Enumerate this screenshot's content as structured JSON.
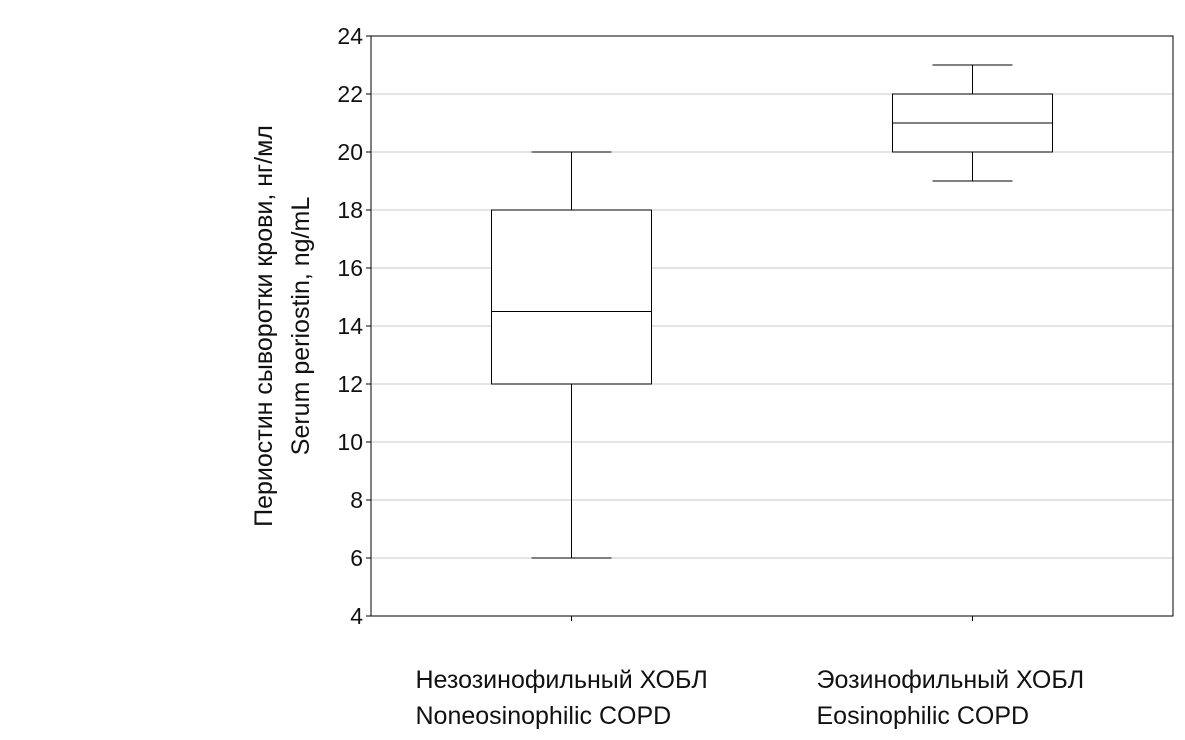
{
  "chart_data": {
    "type": "box",
    "ylabel": [
      "Периостин сыворотки крови, нг/мл",
      "Serum periostin, ng/mL"
    ],
    "xlabel": "",
    "ylim": [
      4,
      24
    ],
    "yticks": [
      4,
      6,
      8,
      10,
      12,
      14,
      16,
      18,
      20,
      22,
      24
    ],
    "grid": true,
    "categories": [
      {
        "lines": [
          "Незозинофильный ХОБЛ",
          "Noneosinophilic COPD"
        ]
      },
      {
        "lines": [
          "Эозинофильный ХОБЛ",
          "Eosinophilic COPD"
        ]
      }
    ],
    "boxes": [
      {
        "min": 6,
        "q1": 12,
        "median": 14.5,
        "q3": 18,
        "max": 20
      },
      {
        "min": 19,
        "q1": 20,
        "median": 21,
        "q3": 22,
        "max": 23
      }
    ]
  }
}
